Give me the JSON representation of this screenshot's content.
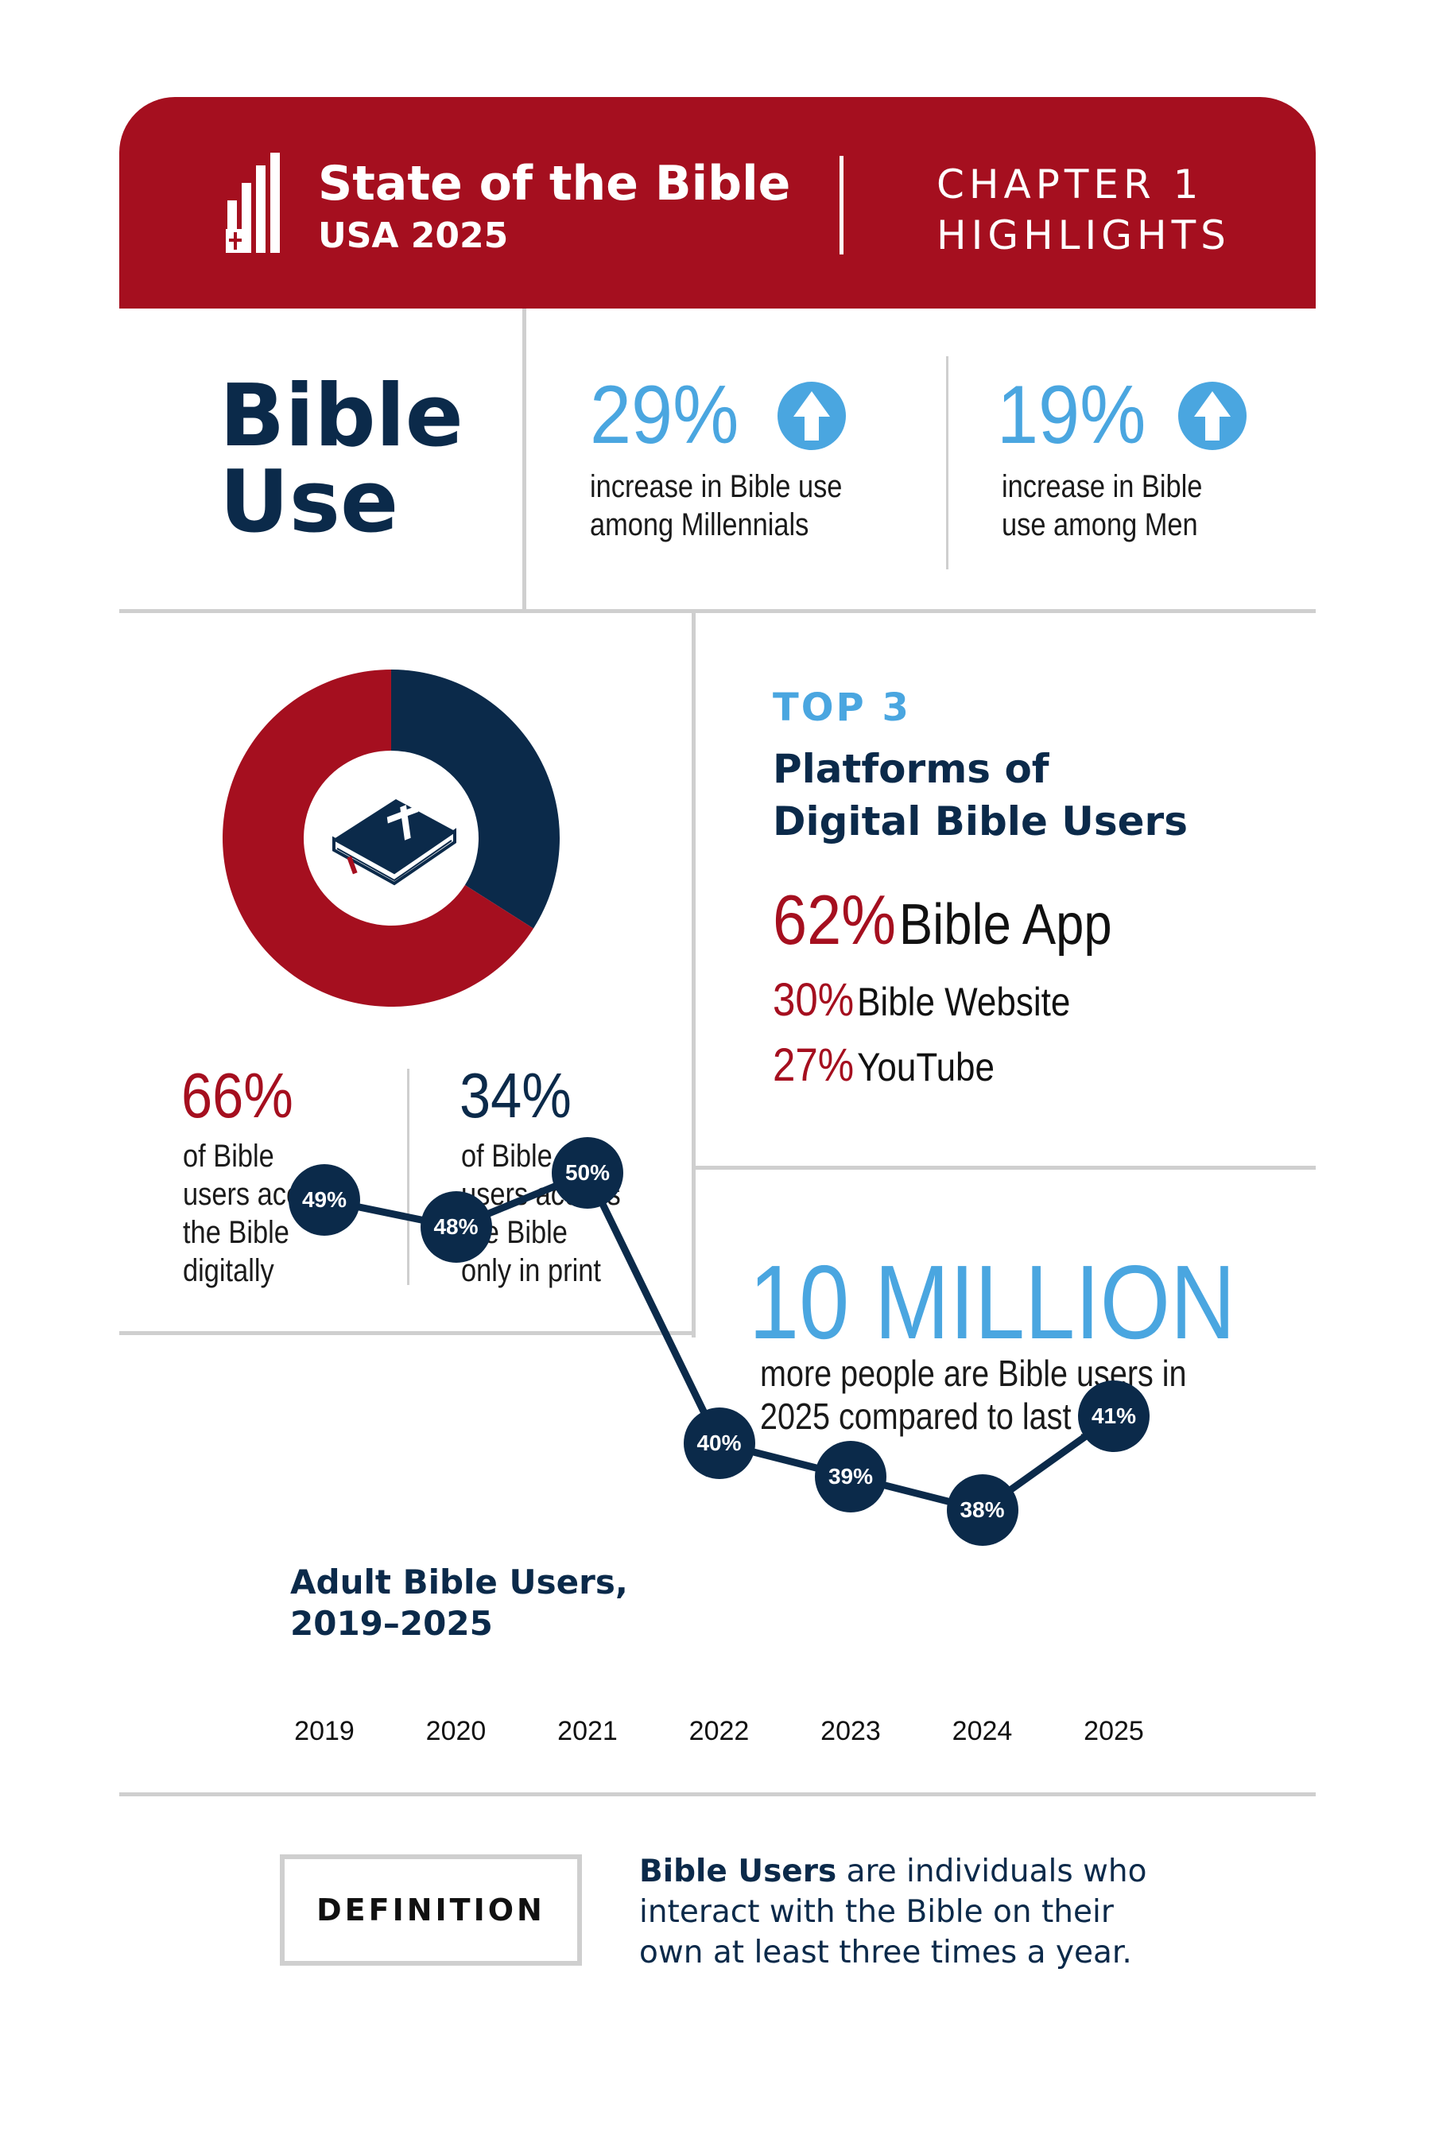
{
  "header": {
    "brand_title": "State of the Bible",
    "brand_subtitle": "USA 2025",
    "chapter_line1": "CHAPTER 1",
    "chapter_line2": "HIGHLIGHTS"
  },
  "section": {
    "title_line1": "Bible",
    "title_line2": "Use"
  },
  "stats": [
    {
      "value": "29%",
      "text_line1": "increase in Bible use",
      "text_line2": "among Millennials",
      "icon": "arrow-up-circle-icon"
    },
    {
      "value": "19%",
      "text_line1": "increase in Bible",
      "text_line2": "use among Men",
      "icon": "arrow-up-circle-icon"
    }
  ],
  "donut": {
    "icon": "bible-book-icon",
    "digital": {
      "value": "66%",
      "lines": [
        "of Bible",
        "users access",
        "the Bible",
        "digitally"
      ],
      "share": 0.66,
      "color": "#a50f1f"
    },
    "print": {
      "value": "34%",
      "lines": [
        "of Bible",
        "users access",
        "the Bible",
        "only in print"
      ],
      "share": 0.34,
      "color": "#0b2a4a"
    }
  },
  "platforms": {
    "kicker": "TOP 3",
    "title_line1": "Platforms of",
    "title_line2": "Digital Bible Users",
    "items": [
      {
        "value": "62%",
        "label": "Bible App"
      },
      {
        "value": "30%",
        "label": "Bible Website"
      },
      {
        "value": "27%",
        "label": "YouTube"
      }
    ]
  },
  "million": {
    "headline": "10 MILLION",
    "text_line1": "more people are Bible users in",
    "text_line2": "2025 compared to last year"
  },
  "chart_data": {
    "type": "line",
    "title": "Adult Bible Users, 2019–2025",
    "title_line1": "Adult Bible Users,",
    "title_line2": "2019–2025",
    "x": [
      "2019",
      "2020",
      "2021",
      "2022",
      "2023",
      "2024",
      "2025"
    ],
    "values": [
      49,
      48,
      50,
      40,
      39,
      38,
      41
    ],
    "labels": [
      "49%",
      "48%",
      "50%",
      "40%",
      "39%",
      "38%",
      "41%"
    ],
    "grid": false,
    "color": "#0b2a4a"
  },
  "definition": {
    "label": "DEFINITION",
    "term": "Bible Users",
    "text_line1_rest": " are individuals who",
    "text_line2": "interact with the Bible on their",
    "text_line3": "own at least three times a year."
  },
  "colors": {
    "red": "#a50f1f",
    "navy": "#0b2a4a",
    "blue": "#4aa6e0",
    "divider": "#cfcfcf"
  }
}
